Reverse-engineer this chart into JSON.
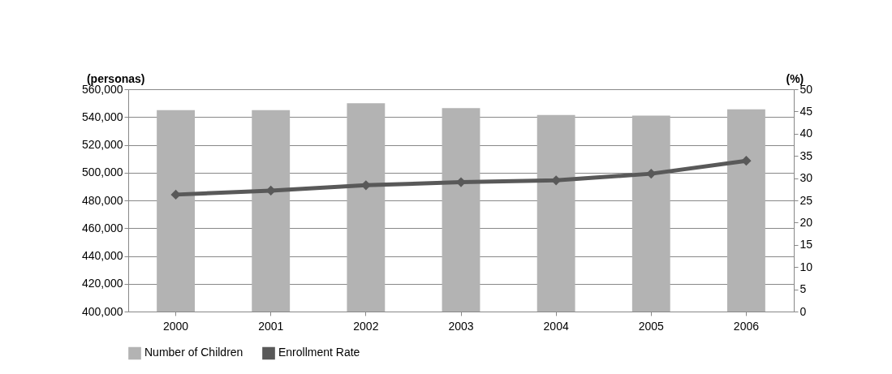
{
  "chart_data": {
    "type": "bar",
    "categories": [
      "2000",
      "2001",
      "2002",
      "2003",
      "2004",
      "2005",
      "2006"
    ],
    "series": [
      {
        "name": "Number of Children",
        "color": "#b3b3b3",
        "values": [
          545000,
          545000,
          550000,
          546400,
          541500,
          541000,
          545600
        ]
      },
      {
        "name": "Enrollment Rate",
        "color": "#595959",
        "type": "line",
        "axis": "y2",
        "values": [
          26.3,
          27.2,
          28.4,
          29.1,
          29.5,
          31.0,
          33.9
        ]
      }
    ],
    "ylabel": "(personas)",
    "y2label": "(%)",
    "ylim": [
      400000,
      560000
    ],
    "yticks": [
      {
        "value": 400000,
        "label": "400,000"
      },
      {
        "value": 420000,
        "label": "420,000"
      },
      {
        "value": 440000,
        "label": "440,000"
      },
      {
        "value": 460000,
        "label": "460,000"
      },
      {
        "value": 480000,
        "label": "480,000"
      },
      {
        "value": 500000,
        "label": "500,000"
      },
      {
        "value": 520000,
        "label": "520,000"
      },
      {
        "value": 540000,
        "label": "540,000"
      },
      {
        "value": 560000,
        "label": "560,000"
      }
    ],
    "y2lim": [
      0,
      50
    ],
    "y2ticks": [
      0,
      5,
      10,
      15,
      20,
      25,
      30,
      35,
      40,
      45,
      50
    ],
    "grid": "y",
    "legend": "bottom",
    "marker": "diamond",
    "line_style": "solid"
  }
}
